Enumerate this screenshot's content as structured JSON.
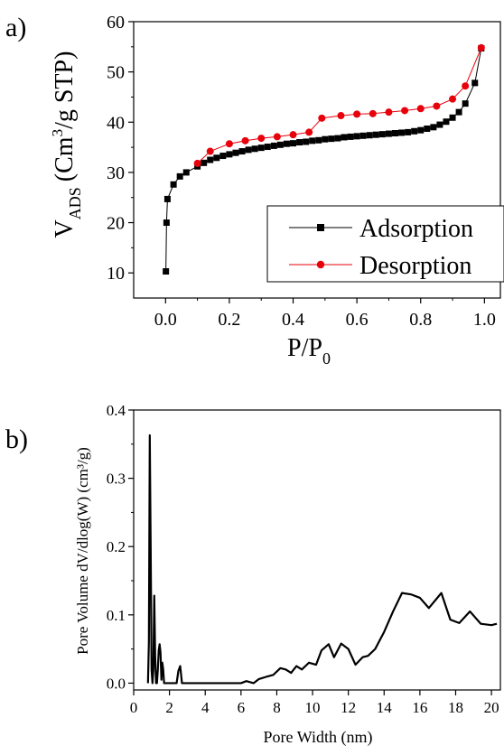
{
  "chart_data": [
    {
      "type": "line",
      "panel_label": "a)",
      "title": "",
      "xlabel": "P/P",
      "xlabel_sub": "0",
      "ylabel_v": "V",
      "ylabel_sub": "ADS",
      "ylabel_units": "(Cm",
      "ylabel_sup": "3",
      "ylabel_tail": "/g STP)",
      "xlim": [
        -0.1,
        1.05
      ],
      "ylim": [
        5,
        60
      ],
      "xticks": [
        0.0,
        0.2,
        0.4,
        0.6,
        0.8,
        1.0
      ],
      "xtick_labels": [
        "0.0",
        "0.2",
        "0.4",
        "0.6",
        "0.8",
        "1.0"
      ],
      "yticks": [
        10,
        20,
        30,
        40,
        50,
        60
      ],
      "ytick_labels": [
        "10",
        "20",
        "30",
        "40",
        "50",
        "60"
      ],
      "grid": false,
      "legend_position": "bottom-right",
      "series": [
        {
          "name": "Adsorption",
          "color": "#000000",
          "marker": "square",
          "x": [
            0.001,
            0.003,
            0.006,
            0.025,
            0.045,
            0.065,
            0.1,
            0.12,
            0.14,
            0.16,
            0.18,
            0.2,
            0.22,
            0.24,
            0.26,
            0.28,
            0.3,
            0.32,
            0.34,
            0.36,
            0.38,
            0.4,
            0.42,
            0.44,
            0.46,
            0.48,
            0.5,
            0.52,
            0.54,
            0.56,
            0.58,
            0.6,
            0.62,
            0.64,
            0.66,
            0.68,
            0.7,
            0.72,
            0.74,
            0.76,
            0.78,
            0.8,
            0.82,
            0.84,
            0.86,
            0.88,
            0.9,
            0.92,
            0.94,
            0.97,
            0.99
          ],
          "y": [
            10.3,
            20.0,
            24.7,
            27.6,
            29.2,
            30.0,
            31.2,
            31.9,
            32.5,
            32.9,
            33.3,
            33.6,
            33.9,
            34.2,
            34.5,
            34.7,
            34.9,
            35.1,
            35.3,
            35.5,
            35.7,
            35.8,
            36.0,
            36.1,
            36.3,
            36.4,
            36.6,
            36.7,
            36.8,
            37.0,
            37.1,
            37.2,
            37.3,
            37.4,
            37.5,
            37.6,
            37.7,
            37.8,
            37.9,
            38.0,
            38.2,
            38.4,
            38.7,
            39.0,
            39.5,
            40.1,
            40.9,
            42.0,
            43.7,
            47.8,
            54.7
          ]
        },
        {
          "name": "Desorption",
          "color": "#e8000b",
          "marker": "circle",
          "x": [
            0.99,
            0.94,
            0.9,
            0.85,
            0.8,
            0.75,
            0.7,
            0.65,
            0.6,
            0.55,
            0.49,
            0.45,
            0.4,
            0.35,
            0.3,
            0.25,
            0.2,
            0.14,
            0.1
          ],
          "y": [
            54.8,
            47.2,
            44.6,
            43.2,
            42.7,
            42.3,
            42.0,
            41.7,
            41.6,
            41.3,
            40.8,
            38.0,
            37.5,
            37.1,
            36.8,
            36.3,
            35.7,
            34.2,
            31.8
          ]
        }
      ]
    },
    {
      "type": "line",
      "panel_label": "b)",
      "title": "",
      "xlabel": "Pore Width (nm)",
      "ylabel": "Pore Volume dV/dlog(W) (cm³/g)",
      "xlim": [
        0,
        20.5
      ],
      "ylim": [
        -0.01,
        0.4
      ],
      "xticks": [
        0,
        2,
        4,
        6,
        8,
        10,
        12,
        14,
        16,
        18,
        20
      ],
      "xtick_labels": [
        "0",
        "2",
        "4",
        "6",
        "8",
        "10",
        "12",
        "14",
        "16",
        "18",
        "20"
      ],
      "yticks": [
        0.0,
        0.1,
        0.2,
        0.3,
        0.4
      ],
      "ytick_labels": [
        "0.0",
        "0.1",
        "0.2",
        "0.3",
        "0.4"
      ],
      "grid": false,
      "series": [
        {
          "name": "",
          "color": "#000000",
          "x": [
            0.8,
            0.85,
            0.9,
            0.95,
            1.0,
            1.05,
            1.1,
            1.15,
            1.2,
            1.25,
            1.3,
            1.35,
            1.4,
            1.45,
            1.5,
            1.55,
            1.6,
            1.65,
            1.7,
            1.75,
            1.8,
            1.85,
            1.9,
            2.4,
            2.5,
            2.6,
            2.7,
            3.5,
            4.5,
            5.5,
            6.0,
            6.3,
            6.7,
            7.0,
            7.5,
            7.8,
            8.2,
            8.5,
            8.8,
            9.1,
            9.4,
            9.8,
            10.2,
            10.5,
            10.9,
            11.2,
            11.6,
            12.0,
            12.4,
            12.8,
            13.1,
            13.5,
            14.0,
            14.5,
            15.0,
            15.5,
            16.0,
            16.5,
            17.2,
            17.7,
            18.2,
            18.8,
            19.4,
            20.0,
            20.3
          ],
          "y": [
            0.0,
            0.06,
            0.363,
            0.2,
            0.02,
            0.0,
            0.02,
            0.128,
            0.04,
            0.0,
            0.0,
            0.02,
            0.048,
            0.057,
            0.045,
            0.005,
            0.03,
            0.02,
            0.0,
            0.0,
            0.0,
            0.0,
            0.0,
            0.0,
            0.018,
            0.025,
            0.0,
            0.0,
            0.0,
            0.0,
            0.0,
            0.003,
            0.0,
            0.006,
            0.01,
            0.012,
            0.022,
            0.02,
            0.015,
            0.025,
            0.02,
            0.03,
            0.027,
            0.048,
            0.057,
            0.038,
            0.058,
            0.05,
            0.027,
            0.038,
            0.04,
            0.05,
            0.075,
            0.105,
            0.132,
            0.13,
            0.125,
            0.11,
            0.132,
            0.093,
            0.088,
            0.105,
            0.087,
            0.085,
            0.087
          ]
        }
      ]
    }
  ]
}
